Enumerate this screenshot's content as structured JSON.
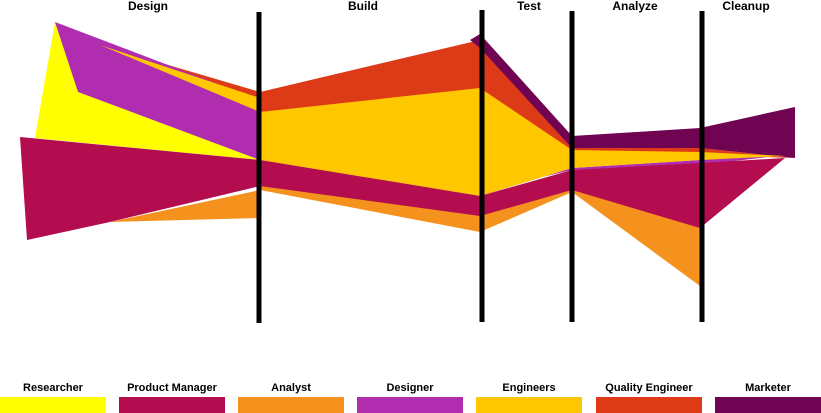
{
  "phases": [
    "Design",
    "Build",
    "Test",
    "Analyze",
    "Cleanup"
  ],
  "roles": [
    {
      "id": "researcher",
      "name": "Researcher",
      "color": "#ffff00"
    },
    {
      "id": "product-manager",
      "name": "Product Manager",
      "color": "#b30c4f"
    },
    {
      "id": "analyst",
      "name": "Analyst",
      "color": "#f5921d"
    },
    {
      "id": "designer",
      "name": "Designer",
      "color": "#b12daf"
    },
    {
      "id": "engineers",
      "name": "Engineers",
      "color": "#ffc700"
    },
    {
      "id": "quality-engineer",
      "name": "Quality Engineer",
      "color": "#dd3a17"
    },
    {
      "id": "marketer",
      "name": "Marketer",
      "color": "#700352"
    }
  ]
}
